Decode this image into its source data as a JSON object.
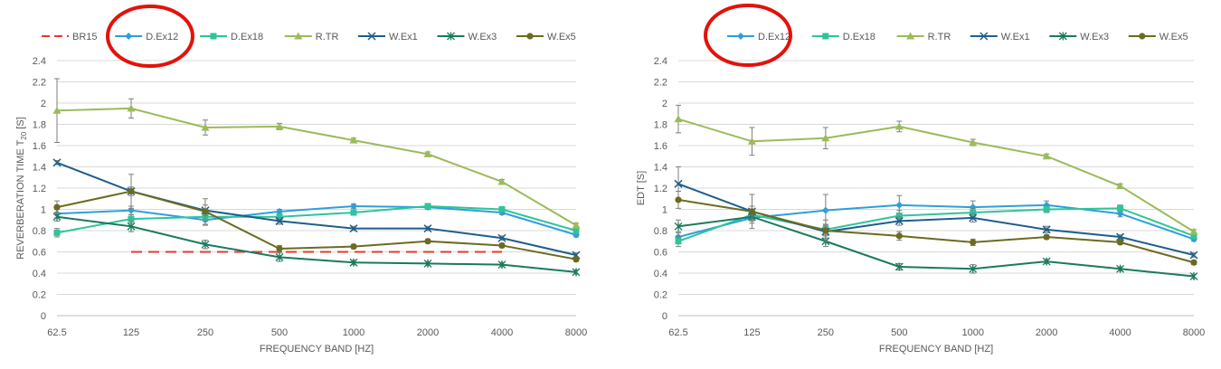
{
  "chart_data": [
    {
      "type": "line",
      "categories": [
        "62.5",
        "125",
        "250",
        "500",
        "1000",
        "2000",
        "4000",
        "8000"
      ],
      "ylim": [
        0,
        2.4
      ],
      "yticks": [
        "0",
        "0.2",
        "0.4",
        "0.6",
        "0.8",
        "1",
        "1.2",
        "1.4",
        "1.6",
        "1.8",
        "2",
        "2.2",
        "2.4"
      ],
      "xlabel": "FREQUENCY BAND [HZ]",
      "ylabel": "REVERBERATION TIME T",
      "ylabel_sub": "20",
      "ylabel_suffix": " [S]",
      "legend_position": "top",
      "highlighted_legend_entry": "D.Ex12",
      "series": [
        {
          "name": "BR15",
          "color": "#e03c31",
          "dashed": true,
          "marker": "none",
          "values": [
            null,
            0.6,
            0.6,
            0.6,
            0.6,
            0.6,
            0.6,
            null
          ]
        },
        {
          "name": "D.Ex12",
          "color": "#2e9fd9",
          "marker": "diamond",
          "values": [
            0.96,
            0.99,
            0.9,
            0.98,
            1.03,
            1.02,
            0.97,
            0.76
          ],
          "errors": [
            0.04,
            0.04,
            0.05,
            0.02,
            0.02,
            0.02,
            0.02,
            0.02
          ]
        },
        {
          "name": "D.Ex18",
          "color": "#2fc49a",
          "marker": "square",
          "values": [
            0.78,
            0.91,
            0.93,
            0.93,
            0.97,
            1.03,
            1.0,
            0.8
          ],
          "errors": [
            0.04,
            0.04,
            0.04,
            0.02,
            0.02,
            0.02,
            0.02,
            0.02
          ]
        },
        {
          "name": "R.TR",
          "color": "#9bbb59",
          "marker": "triangle",
          "values": [
            1.93,
            1.95,
            1.77,
            1.78,
            1.65,
            1.52,
            1.26,
            0.85
          ],
          "errors": [
            0.3,
            0.09,
            0.07,
            0.03,
            0.02,
            0.02,
            0.02,
            0.02
          ]
        },
        {
          "name": "W.Ex1",
          "color": "#1e5e8a",
          "marker": "x",
          "values": [
            1.44,
            1.17,
            0.99,
            0.89,
            0.82,
            0.82,
            0.73,
            0.57
          ],
          "errors": [
            0.02,
            0.04,
            0.05,
            0.03,
            0.02,
            0.02,
            0.02,
            0.02
          ]
        },
        {
          "name": "W.Ex3",
          "color": "#1a7a5e",
          "marker": "star",
          "values": [
            0.93,
            0.84,
            0.67,
            0.55,
            0.5,
            0.49,
            0.48,
            0.41
          ],
          "errors": [
            0.04,
            0.05,
            0.04,
            0.04,
            0.02,
            0.02,
            0.02,
            0.02
          ]
        },
        {
          "name": "W.Ex5",
          "color": "#6b6b20",
          "marker": "circle",
          "values": [
            1.02,
            1.17,
            0.98,
            0.63,
            0.65,
            0.7,
            0.66,
            0.53
          ],
          "errors": [
            0.06,
            0.16,
            0.12,
            0.03,
            0.02,
            0.02,
            0.02,
            0.02
          ]
        }
      ]
    },
    {
      "type": "line",
      "categories": [
        "62.5",
        "125",
        "250",
        "500",
        "1000",
        "2000",
        "4000",
        "8000"
      ],
      "ylim": [
        0,
        2.4
      ],
      "yticks": [
        "0",
        "0.2",
        "0.4",
        "0.6",
        "0.8",
        "1",
        "1.2",
        "1.4",
        "1.6",
        "1.8",
        "2",
        "2.2",
        "2.4"
      ],
      "xlabel": "FREQUENCY BAND [HZ]",
      "ylabel": "EDT [S]",
      "legend_position": "top",
      "highlighted_legend_entry": "D.Ex12",
      "series": [
        {
          "name": "D.Ex12",
          "color": "#2e9fd9",
          "marker": "diamond",
          "values": [
            0.74,
            0.92,
            0.99,
            1.04,
            1.02,
            1.04,
            0.96,
            0.72
          ],
          "errors": [
            0.05,
            0.05,
            0.15,
            0.09,
            0.06,
            0.04,
            0.03,
            0.02
          ]
        },
        {
          "name": "D.Ex18",
          "color": "#2fc49a",
          "marker": "square",
          "values": [
            0.7,
            0.95,
            0.81,
            0.94,
            0.97,
            1.0,
            1.01,
            0.75
          ],
          "errors": [
            0.05,
            0.05,
            0.05,
            0.05,
            0.04,
            0.03,
            0.03,
            0.02
          ]
        },
        {
          "name": "R.TR",
          "color": "#9bbb59",
          "marker": "triangle",
          "values": [
            1.85,
            1.64,
            1.67,
            1.78,
            1.63,
            1.5,
            1.22,
            0.79
          ],
          "errors": [
            0.13,
            0.13,
            0.1,
            0.05,
            0.03,
            0.02,
            0.02,
            0.02
          ]
        },
        {
          "name": "W.Ex1",
          "color": "#1e5e8a",
          "marker": "x",
          "values": [
            1.24,
            0.98,
            0.79,
            0.89,
            0.92,
            0.81,
            0.74,
            0.57
          ],
          "errors": [
            0.16,
            0.05,
            0.06,
            0.04,
            0.04,
            0.03,
            0.02,
            0.02
          ]
        },
        {
          "name": "W.Ex3",
          "color": "#1a7a5e",
          "marker": "star",
          "values": [
            0.84,
            0.93,
            0.7,
            0.46,
            0.44,
            0.51,
            0.44,
            0.37
          ],
          "errors": [
            0.06,
            0.04,
            0.05,
            0.03,
            0.04,
            0.02,
            0.02,
            0.02
          ]
        },
        {
          "name": "W.Ex5",
          "color": "#6b6b20",
          "marker": "circle",
          "values": [
            1.09,
            0.98,
            0.8,
            0.75,
            0.69,
            0.74,
            0.69,
            0.5
          ],
          "errors": [
            0.08,
            0.16,
            0.1,
            0.04,
            0.03,
            0.02,
            0.02,
            0.02
          ]
        }
      ]
    }
  ]
}
